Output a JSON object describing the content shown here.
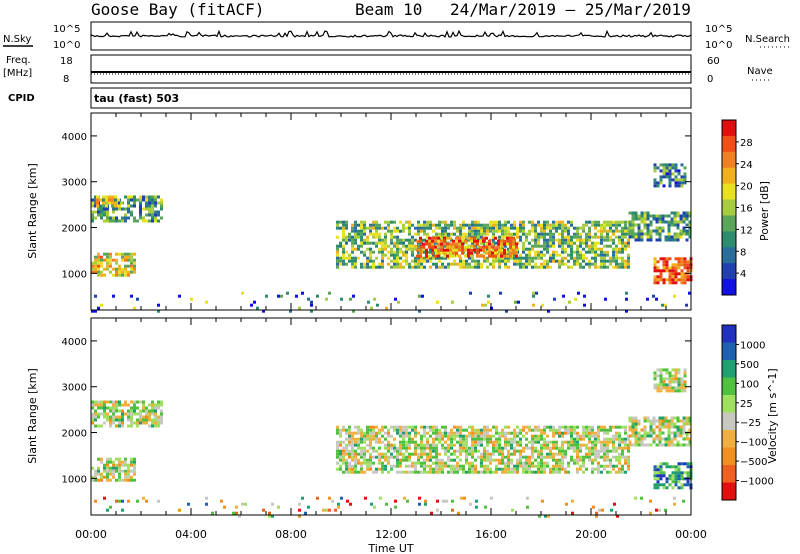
{
  "header": {
    "station": "Goose Bay (fitACF)",
    "beam": "Beam 10",
    "date_range": "24/Mar/2019 – 25/Mar/2019"
  },
  "top_panels": {
    "nsky_label": "N.Sky",
    "nsky_tick_top": "10^5",
    "nsky_tick_bottom": "10^0",
    "nsearch_label": "N.Search",
    "nsearch_tick_top": "10^5",
    "nsearch_tick_bottom": "10^0",
    "freq_label": "Freq.",
    "freq_unit": "[MHz]",
    "freq_tick_top": "18",
    "freq_tick_bottom": "8",
    "nave_label": "Nave",
    "nave_tick_top": "60",
    "nave_tick_bottom": "0",
    "cpid_label": "CPID",
    "cpid_value": "tau (fast) 503"
  },
  "chart_data": [
    {
      "type": "heatmap",
      "name": "Power",
      "xlabel": "",
      "ylabel": "Slant Range [km]",
      "xlim_hours": [
        0,
        24
      ],
      "ylim": [
        200,
        4500
      ],
      "yticks": [
        1000,
        2000,
        3000,
        4000
      ],
      "colorbar": {
        "label": "Power [dB]",
        "ticks": [
          "4",
          "8",
          "12",
          "16",
          "20",
          "24",
          "28"
        ],
        "colors": [
          "#1010e0",
          "#2040b0",
          "#2a6d9a",
          "#2e8b6e",
          "#5aa55a",
          "#a8cc40",
          "#e8e020",
          "#f0b020",
          "#f08020",
          "#f05018",
          "#e01010"
        ]
      },
      "regions": [
        {
          "t": [
            0.0,
            1.8
          ],
          "r": [
            950,
            1450
          ],
          "level": 0.6
        },
        {
          "t": [
            0.0,
            2.8
          ],
          "r": [
            2150,
            2700
          ],
          "level": 0.35
        },
        {
          "t": [
            0.2,
            1.2
          ],
          "r": [
            2450,
            2700
          ],
          "level": 0.55
        },
        {
          "t": [
            9.8,
            21.5
          ],
          "r": [
            1150,
            2150
          ],
          "level": 0.45
        },
        {
          "t": [
            13.0,
            17.0
          ],
          "r": [
            1350,
            1800
          ],
          "level": 0.8
        },
        {
          "t": [
            21.5,
            24.0
          ],
          "r": [
            1750,
            2350
          ],
          "level": 0.35
        },
        {
          "t": [
            22.5,
            24.0
          ],
          "r": [
            800,
            1350
          ],
          "level": 0.85
        },
        {
          "t": [
            22.5,
            23.8
          ],
          "r": [
            2900,
            3400
          ],
          "level": 0.3
        },
        {
          "t": [
            0.0,
            24.0
          ],
          "r": [
            200,
            600
          ],
          "level": 0.2
        }
      ]
    },
    {
      "type": "heatmap",
      "name": "Velocity",
      "xlabel": "Time UT",
      "ylabel": "Slant Range [km]",
      "xlim_hours": [
        0,
        24
      ],
      "ylim": [
        200,
        4500
      ],
      "yticks": [
        1000,
        2000,
        3000,
        4000
      ],
      "xticks": [
        "00:00",
        "04:00",
        "08:00",
        "12:00",
        "16:00",
        "20:00",
        "00:00"
      ],
      "colorbar": {
        "label": "Velocity [m s^-1]",
        "ticks": [
          "1000",
          "500",
          "100",
          "25",
          "−25",
          "−100",
          "−500",
          "−1000"
        ],
        "colors": [
          "#2030c0",
          "#2060b0",
          "#20a070",
          "#50c040",
          "#a0e060",
          "#c8c8c0",
          "#f0b040",
          "#f09020",
          "#f06020",
          "#e01010"
        ]
      },
      "regions": [
        {
          "t": [
            0.0,
            1.8
          ],
          "r": [
            950,
            1450
          ],
          "level": 0.5
        },
        {
          "t": [
            0.0,
            2.8
          ],
          "r": [
            2150,
            2700
          ],
          "level": 0.5
        },
        {
          "t": [
            9.8,
            21.5
          ],
          "r": [
            1150,
            2150
          ],
          "level": 0.5
        },
        {
          "t": [
            21.5,
            24.0
          ],
          "r": [
            1750,
            2350
          ],
          "level": 0.5
        },
        {
          "t": [
            22.5,
            24.0
          ],
          "r": [
            800,
            1350
          ],
          "level": 0.25
        },
        {
          "t": [
            22.5,
            23.8
          ],
          "r": [
            2900,
            3400
          ],
          "level": 0.5
        },
        {
          "t": [
            0.0,
            24.0
          ],
          "r": [
            200,
            600
          ],
          "level": 0.6
        }
      ]
    }
  ]
}
